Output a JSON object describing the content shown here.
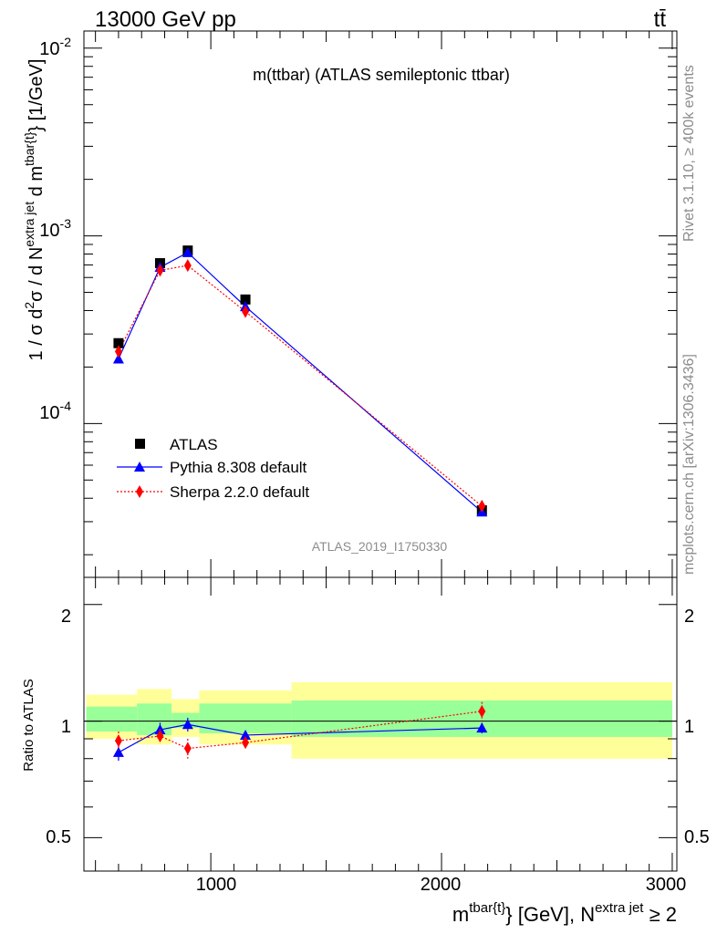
{
  "header": {
    "beam": "13000 GeV pp",
    "process": "tt̄",
    "side_rivet": "Rivet 3.1.10, ≥ 400k events",
    "side_mcplots": "mcplots.cern.ch [arXiv:1306.3436]"
  },
  "chart_data": [
    {
      "type": "line",
      "title": "m(ttbar) (ATLAS semileptonic ttbar)",
      "watermark": "ATLAS_2019_I1750330",
      "ylabel": "1 / σ d²σ / d N^{extra jet} d m^{tbar{t}} [1/GeV]",
      "ylabel_parts": {
        "pre": "1 / σ d",
        "sup1": "2",
        "mid": "σ / d N",
        "sup2": "extra jet",
        "post": " d m",
        "sup3": "tbar{t}",
        "tail": "} [1/GeV]"
      },
      "yscale": "log",
      "ylim": [
        1.515e-05,
        0.01234
      ],
      "xlim": [
        450,
        3020
      ],
      "ytick_labels": {
        "e2": "10",
        "e2sup": "-2",
        "e3": "10",
        "e3sup": "-3",
        "e4": "10",
        "e4sup": "-4"
      },
      "legend_position": "middle-left",
      "series": [
        {
          "name": "ATLAS",
          "marker": "square",
          "color": "#000000",
          "x": [
            600,
            780,
            900,
            1150,
            2175
          ],
          "y": [
            0.000268,
            0.000715,
            0.000835,
            0.000458,
            3.45e-05
          ]
        },
        {
          "name": "Pythia 8.308 default",
          "marker": "triangle",
          "color": "#0000ff",
          "line": "solid",
          "x": [
            600,
            780,
            900,
            1150,
            2175
          ],
          "y": [
            0.000221,
            0.00068,
            0.000815,
            0.00042,
            3.38e-05
          ]
        },
        {
          "name": "Sherpa 2.2.0 default",
          "marker": "diamond",
          "color": "#ff0000",
          "line": "dotted",
          "x": [
            600,
            780,
            900,
            1150,
            2175
          ],
          "y": [
            0.000242,
            0.000655,
            0.000695,
            0.000395,
            3.63e-05
          ]
        }
      ]
    },
    {
      "type": "line",
      "ylabel": "Ratio to ATLAS",
      "yscale": "log",
      "ylim": [
        0.41,
        2.35
      ],
      "xlim": [
        450,
        3020
      ],
      "ytick_labels": [
        "0.5",
        "1",
        "2"
      ],
      "xtick_labels": [
        "1000",
        "2000",
        "3000"
      ],
      "xlabel_parts": {
        "pre": "m",
        "sup1": "tbar{t}",
        "mid": "} [GeV], N",
        "sup2": "extra jet",
        "post": " ≥ 2"
      },
      "bins": [
        [
          460,
          680
        ],
        [
          680,
          830
        ],
        [
          830,
          950
        ],
        [
          950,
          1350
        ],
        [
          1350,
          3000
        ]
      ],
      "band_inner": [
        [
          0.94,
          1.09
        ],
        [
          0.92,
          1.11
        ],
        [
          0.96,
          1.05
        ],
        [
          0.93,
          1.11
        ],
        [
          0.91,
          1.13
        ]
      ],
      "band_outer": [
        [
          0.9,
          1.17
        ],
        [
          0.87,
          1.21
        ],
        [
          0.91,
          1.14
        ],
        [
          0.87,
          1.2
        ],
        [
          0.8,
          1.26
        ]
      ],
      "series": [
        {
          "name": "Pythia 8.308 default",
          "color": "#0000ff",
          "marker": "triangle",
          "x": [
            600,
            780,
            900,
            1150,
            2175
          ],
          "y": [
            0.83,
            0.95,
            0.98,
            0.92,
            0.96
          ],
          "err": [
            0.04,
            0.04,
            0.04,
            0.02,
            0.03
          ]
        },
        {
          "name": "Sherpa 2.2.0 default",
          "color": "#ff0000",
          "marker": "diamond",
          "x": [
            600,
            780,
            900,
            1150,
            2175
          ],
          "y": [
            0.89,
            0.915,
            0.85,
            0.88,
            1.06
          ],
          "err": [
            0.05,
            0.04,
            0.05,
            0.03,
            0.06
          ]
        }
      ]
    }
  ]
}
